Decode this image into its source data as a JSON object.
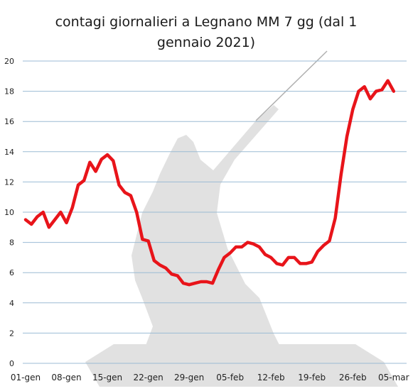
{
  "chart_data": {
    "type": "line",
    "title_lines": [
      "contagi giornalieri a Legnano MM 7 gg (dal 1",
      "gennaio 2021)"
    ],
    "ylim": [
      0,
      20
    ],
    "yticks": [
      0,
      2,
      4,
      6,
      8,
      10,
      12,
      14,
      16,
      18,
      20
    ],
    "grid": true,
    "xticks": [
      {
        "day": 0,
        "label": "01-gen"
      },
      {
        "day": 7,
        "label": "08-gen"
      },
      {
        "day": 14,
        "label": "15-gen"
      },
      {
        "day": 21,
        "label": "22-gen"
      },
      {
        "day": 28,
        "label": "29-gen"
      },
      {
        "day": 35,
        "label": "05-feb"
      },
      {
        "day": 42,
        "label": "12-feb"
      },
      {
        "day": 49,
        "label": "19-feb"
      },
      {
        "day": 56,
        "label": "26-feb"
      },
      {
        "day": 63,
        "label": "05-mar"
      }
    ],
    "x_domain": [
      0,
      64
    ],
    "series": [
      {
        "color": "#e8141a",
        "points": [
          [
            0,
            9.5
          ],
          [
            1,
            9.2
          ],
          [
            2,
            9.7
          ],
          [
            3,
            10.0
          ],
          [
            4,
            9.0
          ],
          [
            5,
            9.5
          ],
          [
            6,
            10.0
          ],
          [
            7,
            9.3
          ],
          [
            8,
            10.3
          ],
          [
            9,
            11.8
          ],
          [
            10,
            12.1
          ],
          [
            11,
            13.3
          ],
          [
            12,
            12.7
          ],
          [
            13,
            13.5
          ],
          [
            14,
            13.8
          ],
          [
            15,
            13.4
          ],
          [
            16,
            11.8
          ],
          [
            17,
            11.3
          ],
          [
            18,
            11.1
          ],
          [
            19,
            10.0
          ],
          [
            20,
            8.2
          ],
          [
            21,
            8.1
          ],
          [
            22,
            6.8
          ],
          [
            23,
            6.5
          ],
          [
            24,
            6.3
          ],
          [
            25,
            5.9
          ],
          [
            26,
            5.8
          ],
          [
            27,
            5.3
          ],
          [
            28,
            5.2
          ],
          [
            29,
            5.3
          ],
          [
            30,
            5.4
          ],
          [
            31,
            5.4
          ],
          [
            32,
            5.3
          ],
          [
            33,
            6.2
          ],
          [
            34,
            7.0
          ],
          [
            35,
            7.3
          ],
          [
            36,
            7.7
          ],
          [
            37,
            7.7
          ],
          [
            38,
            8.0
          ],
          [
            39,
            7.9
          ],
          [
            40,
            7.7
          ],
          [
            41,
            7.2
          ],
          [
            42,
            7.0
          ],
          [
            43,
            6.6
          ],
          [
            44,
            6.5
          ],
          [
            45,
            7.0
          ],
          [
            46,
            7.0
          ],
          [
            47,
            6.6
          ],
          [
            48,
            6.6
          ],
          [
            49,
            6.7
          ],
          [
            50,
            7.4
          ],
          [
            51,
            7.8
          ],
          [
            52,
            8.1
          ],
          [
            53,
            9.6
          ],
          [
            54,
            12.5
          ],
          [
            55,
            15.0
          ],
          [
            56,
            16.8
          ],
          [
            57,
            18.0
          ],
          [
            58,
            18.3
          ],
          [
            59,
            17.5
          ],
          [
            60,
            18.0
          ],
          [
            61,
            18.1
          ],
          [
            62,
            18.7
          ],
          [
            63,
            18.0
          ]
        ]
      }
    ]
  }
}
